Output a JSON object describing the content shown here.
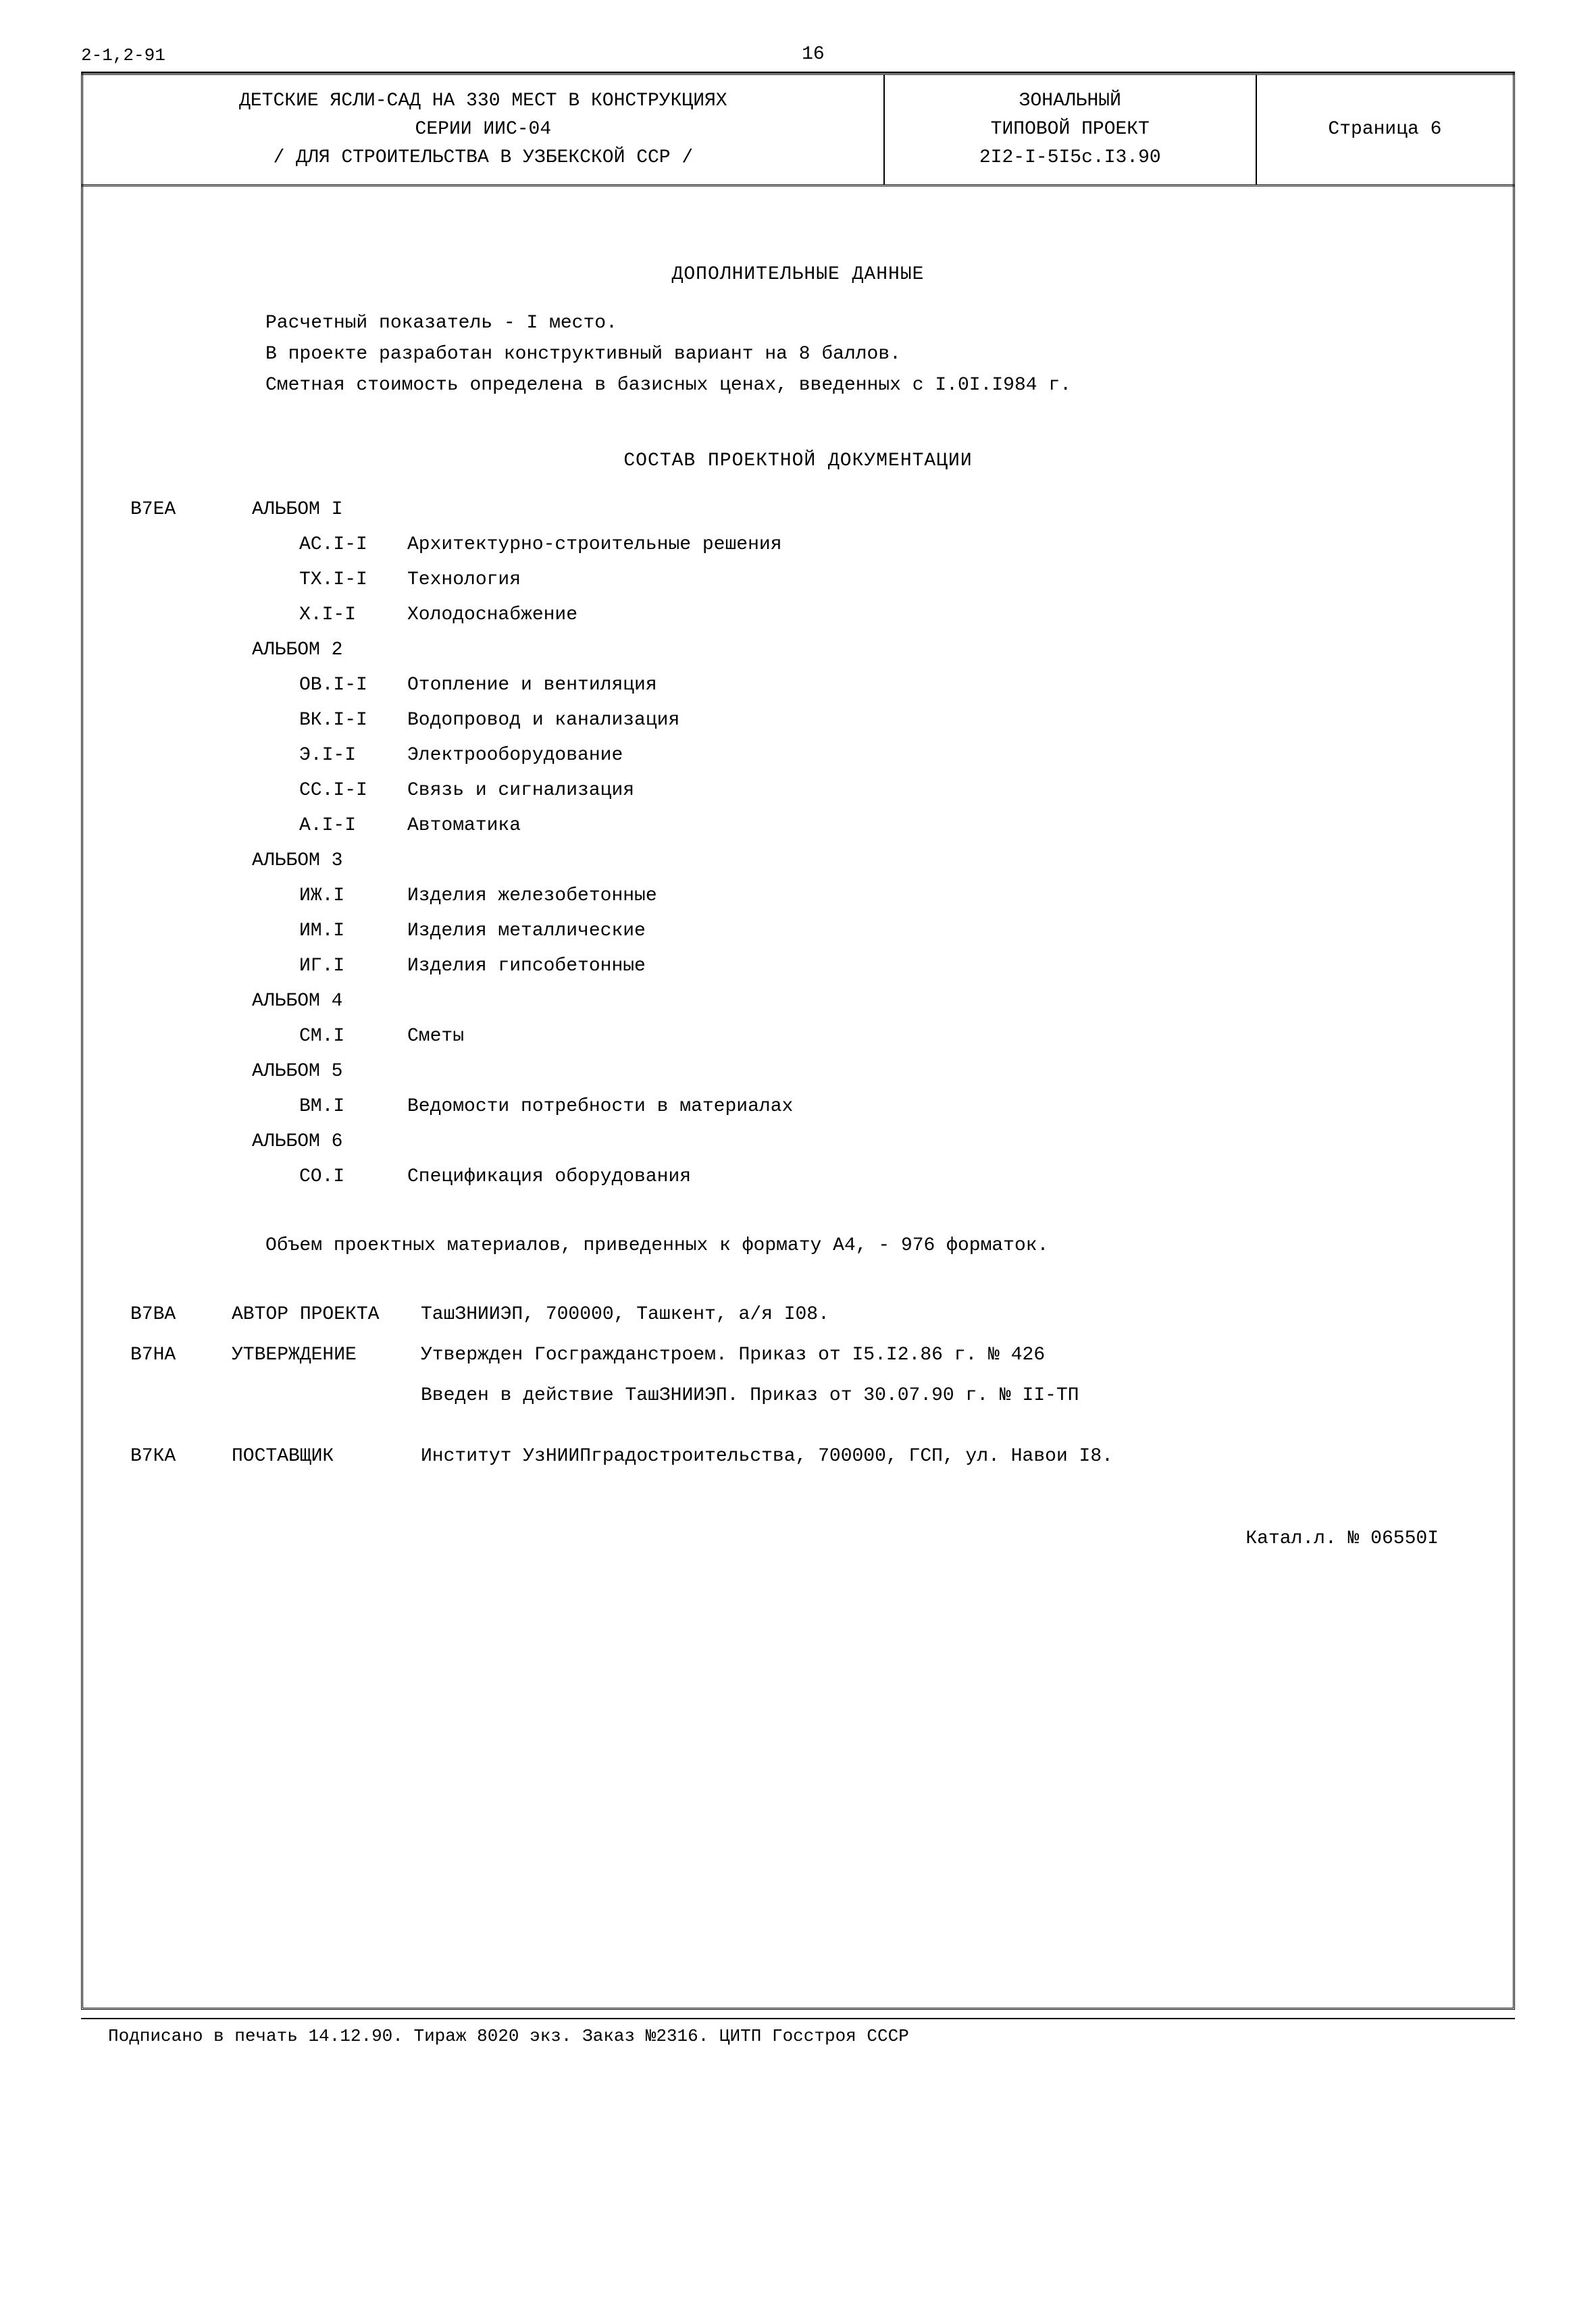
{
  "header": {
    "doc_code": "2-1,2-91",
    "page_number": "16",
    "title_line1": "ДЕТСКИЕ ЯСЛИ-САД НА 330 МЕСТ В КОНСТРУКЦИЯХ",
    "title_line2": "СЕРИИ ИИС-04",
    "title_line3": "/ ДЛЯ СТРОИТЕЛЬСТВА В УЗБЕКСКОЙ ССР /",
    "project_line1": "ЗОНАЛЬНЫЙ",
    "project_line2": "ТИПОВОЙ ПРОЕКТ",
    "project_line3": "2I2-I-5I5с.I3.90",
    "page_label": "Страница 6"
  },
  "additional": {
    "title": "ДОПОЛНИТЕЛЬНЫЕ ДАННЫЕ",
    "line1": "Расчетный показатель - I место.",
    "line2": "В проекте разработан конструктивный вариант на 8 баллов.",
    "line3": "Сметная стоимость определена в базисных ценах, введенных с I.0I.I984 г."
  },
  "composition": {
    "title": "СОСТАВ ПРОЕКТНОЙ ДОКУМЕНТАЦИИ",
    "master_code": "В7ЕА",
    "albums": [
      {
        "label": "АЛЬБОМ I",
        "items": [
          {
            "code": "АС.I-I",
            "desc": "Архитектурно-строительные решения"
          },
          {
            "code": "ТХ.I-I",
            "desc": "Технология"
          },
          {
            "code": "Х.I-I",
            "desc": "Холодоснабжение"
          }
        ]
      },
      {
        "label": "АЛЬБОМ 2",
        "items": [
          {
            "code": "ОВ.I-I",
            "desc": "Отопление и вентиляция"
          },
          {
            "code": "ВК.I-I",
            "desc": "Водопровод и канализация"
          },
          {
            "code": "Э.I-I",
            "desc": "Электрооборудование"
          },
          {
            "code": "СС.I-I",
            "desc": "Связь и сигнализация"
          },
          {
            "code": "А.I-I",
            "desc": "Автоматика"
          }
        ]
      },
      {
        "label": "АЛЬБОМ 3",
        "items": [
          {
            "code": "ИЖ.I",
            "desc": "Изделия железобетонные"
          },
          {
            "code": "ИМ.I",
            "desc": "Изделия металлические"
          },
          {
            "code": "ИГ.I",
            "desc": "Изделия гипсобетонные"
          }
        ]
      },
      {
        "label": "АЛЬБОМ 4",
        "items": [
          {
            "code": "СМ.I",
            "desc": "Сметы"
          }
        ]
      },
      {
        "label": "АЛЬБОМ 5",
        "items": [
          {
            "code": "ВМ.I",
            "desc": "Ведомости потребности в материалах"
          }
        ]
      },
      {
        "label": "АЛЬБОМ 6",
        "items": [
          {
            "code": "СО.I",
            "desc": "Спецификация оборудования"
          }
        ]
      }
    ]
  },
  "volume_note": "Объем проектных материалов, приведенных к формату А4, - 976 форматок.",
  "meta": {
    "author": {
      "code": "В7ВА",
      "label": "АВТОР ПРОЕКТА",
      "value": "ТашЗНИИЭП, 700000, Ташкент, а/я I08."
    },
    "approval": {
      "code": "В7НА",
      "label": "УТВЕРЖДЕНИЕ",
      "value1": "Утвержден Госгражданстроем. Приказ от I5.I2.86 г. № 426",
      "value2": "Введен в действие ТашЗНИИЭП. Приказ от 30.07.90 г. № II-ТП"
    },
    "supplier": {
      "code": "В7КА",
      "label": "ПОСТАВЩИК",
      "value": "Институт УзНИИПградостроительства, 700000, ГСП, ул. Навои I8."
    }
  },
  "catalog_num": "Катал.л. № 06550I",
  "footer": "Подписано в печать 14.12.90.  Тираж 8020 экз.  Заказ №2316. ЦИТП Госстроя СССР"
}
